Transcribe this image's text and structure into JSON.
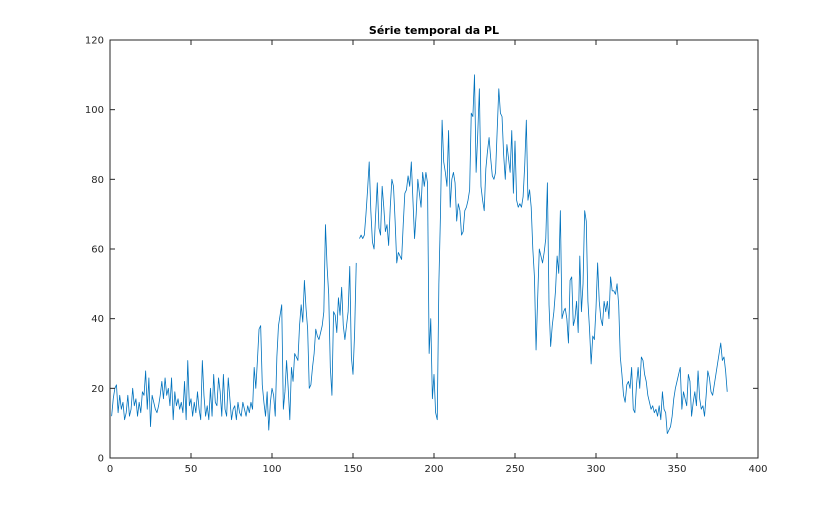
{
  "chart_data": {
    "type": "line",
    "title": "Série temporal da PL",
    "xlabel": "",
    "ylabel": "",
    "xlim": [
      0,
      400
    ],
    "ylim": [
      0,
      120
    ],
    "xticks": [
      0,
      50,
      100,
      150,
      200,
      250,
      300,
      350,
      400
    ],
    "yticks": [
      0,
      20,
      40,
      60,
      80,
      100,
      120
    ],
    "grid": false,
    "line_color": "#0072BD",
    "series": [
      {
        "x_start": 1,
        "values": [
          12,
          17,
          20,
          21,
          13,
          18,
          14,
          16,
          11,
          13,
          18,
          12,
          14,
          20,
          15,
          17,
          12,
          16,
          13,
          19,
          18,
          25,
          14,
          23,
          9,
          18,
          16,
          14,
          13,
          15,
          18,
          22,
          17,
          23,
          18,
          20,
          15,
          23,
          11,
          19,
          15,
          17,
          14,
          16,
          13,
          22,
          11,
          28,
          15,
          17,
          12,
          16,
          13,
          19,
          14,
          11,
          28,
          18,
          12,
          15,
          11,
          20,
          12,
          24,
          16,
          15,
          23,
          19,
          12,
          24,
          14,
          12,
          23,
          17,
          11,
          14,
          15,
          11,
          16,
          13,
          12,
          16,
          14,
          12,
          15,
          13,
          16,
          14,
          26,
          20,
          28,
          37,
          38,
          21,
          16,
          12,
          19,
          8,
          16,
          20,
          18,
          12,
          29,
          38,
          41,
          44,
          14,
          19,
          28,
          20,
          11,
          26,
          22,
          30,
          29,
          28,
          38,
          44,
          39,
          51,
          43,
          37,
          20,
          21,
          26,
          30,
          37,
          35,
          34,
          36,
          38,
          42,
          67,
          55,
          47,
          26,
          18,
          42,
          41,
          36,
          46,
          41,
          49,
          38,
          34,
          38,
          42,
          55,
          29,
          24,
          36,
          56,
          null,
          63,
          64,
          63,
          64,
          70,
          77,
          85,
          71,
          62,
          60,
          70,
          79,
          66,
          64,
          78,
          72,
          65,
          67,
          61,
          72,
          80,
          78,
          68,
          56,
          59,
          58,
          57,
          67,
          76,
          77,
          81,
          78,
          85,
          74,
          63,
          70,
          80,
          76,
          72,
          82,
          78,
          82,
          79,
          30,
          40,
          17,
          24,
          13,
          11,
          50,
          70,
          97,
          85,
          82,
          78,
          94,
          72,
          80,
          82,
          79,
          68,
          73,
          71,
          64,
          65,
          71,
          72,
          74,
          77,
          99,
          98,
          110,
          82,
          93,
          106,
          78,
          74,
          71,
          83,
          88,
          92,
          86,
          81,
          80,
          82,
          94,
          106,
          99,
          98,
          87,
          80,
          90,
          86,
          82,
          94,
          76,
          91,
          74,
          72,
          73,
          72,
          75,
          84,
          97,
          74,
          77,
          72,
          60,
          52,
          31,
          46,
          60,
          58,
          56,
          59,
          63,
          79,
          44,
          32,
          38,
          42,
          48,
          58,
          53,
          71,
          40,
          42,
          43,
          40,
          33,
          51,
          52,
          38,
          40,
          45,
          36,
          58,
          42,
          50,
          71,
          68,
          45,
          37,
          27,
          35,
          34,
          43,
          56,
          45,
          40,
          38,
          45,
          42,
          45,
          40,
          52,
          48,
          48,
          47,
          50,
          44,
          29,
          24,
          18,
          16,
          21,
          22,
          20,
          26,
          14,
          13,
          21,
          26,
          20,
          29,
          28,
          24,
          22,
          18,
          16,
          14,
          15,
          13,
          14,
          12,
          15,
          11,
          19,
          14,
          13,
          7,
          8,
          9,
          12,
          17,
          20,
          22,
          24,
          26,
          14,
          19,
          17,
          15,
          24,
          22,
          12,
          16,
          19,
          15,
          25,
          17,
          14,
          15,
          12,
          18,
          25,
          23,
          19,
          18,
          21,
          24,
          27,
          30,
          33,
          28,
          29,
          25,
          19
        ]
      }
    ]
  }
}
